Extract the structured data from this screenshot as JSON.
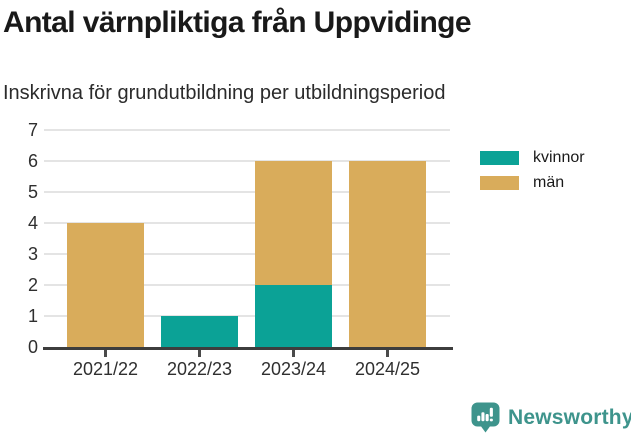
{
  "header": {
    "title": "Antal värnpliktiga från Uppvidinge",
    "subtitle": "Inskrivna för grundutbildning per utbildningsperiod"
  },
  "chart_data": {
    "type": "bar",
    "stacked": true,
    "categories": [
      "2021/22",
      "2022/23",
      "2023/24",
      "2024/25"
    ],
    "series": [
      {
        "name": "kvinnor",
        "color": "#0BA296",
        "values": [
          0,
          1,
          2,
          0
        ]
      },
      {
        "name": "män",
        "color": "#D9AC5B",
        "values": [
          4,
          0,
          4,
          6
        ]
      }
    ],
    "totals": [
      4,
      1,
      6,
      6
    ],
    "title": "Antal värnpliktiga från Uppvidinge",
    "subtitle": "Inskrivna för grundutbildning per utbildningsperiod",
    "xlabel": "",
    "ylabel": "",
    "ylim": [
      0,
      7
    ],
    "yticks": [
      0,
      1,
      2,
      3,
      4,
      5,
      6,
      7
    ],
    "grid": true,
    "grid_color": "#E4E4E4",
    "axis_color": "#3D3D3D",
    "legend_position": "right"
  },
  "branding": {
    "logo_text": "Newsworthy",
    "logo_color": "#3E948C"
  }
}
